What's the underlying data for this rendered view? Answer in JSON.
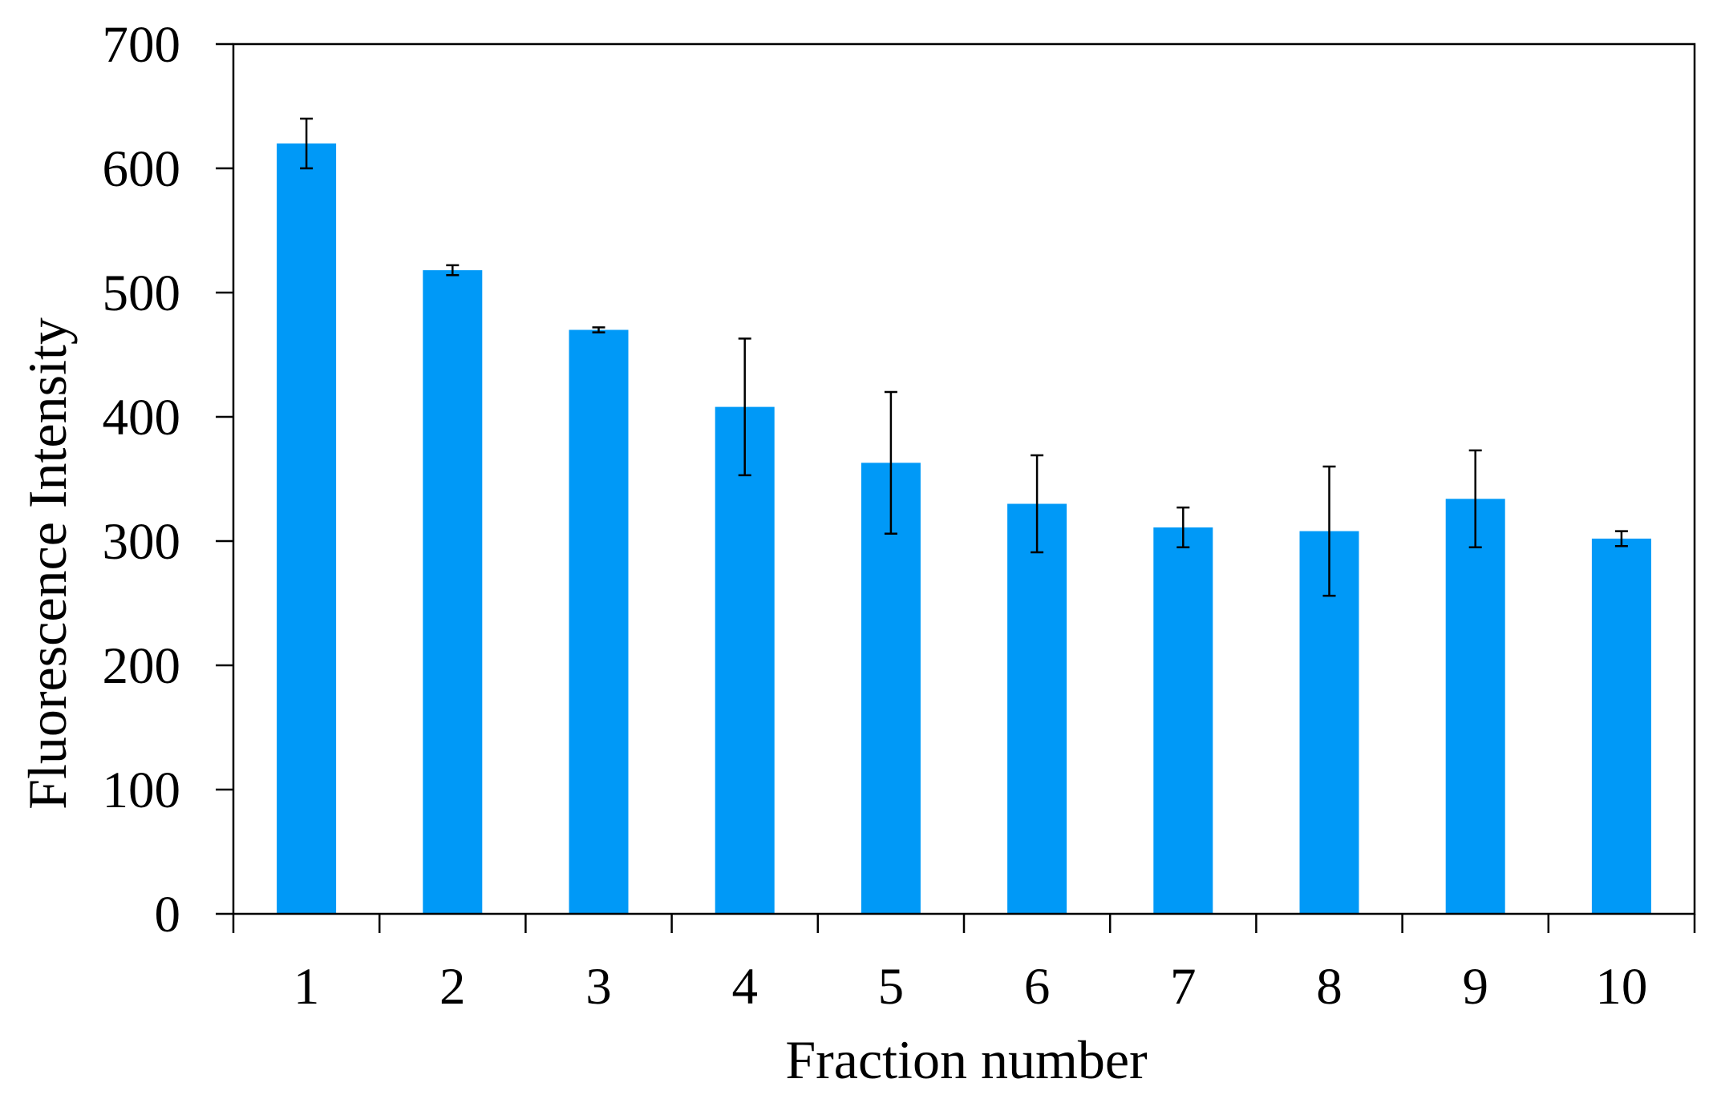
{
  "chart_data": {
    "type": "bar",
    "x_label": "Fraction number",
    "y_label": "Fluorescence Intensity",
    "categories": [
      "1",
      "2",
      "3",
      "4",
      "5",
      "6",
      "7",
      "8",
      "9",
      "10"
    ],
    "values": [
      620,
      518,
      470,
      408,
      363,
      330,
      311,
      308,
      334,
      302
    ],
    "errors": [
      20,
      4,
      2,
      55,
      57,
      39,
      16,
      52,
      39,
      6
    ],
    "color": "#0099f7",
    "ylim": [
      0,
      700
    ],
    "yticks": [
      0,
      100,
      200,
      300,
      400,
      500,
      600,
      700
    ]
  }
}
